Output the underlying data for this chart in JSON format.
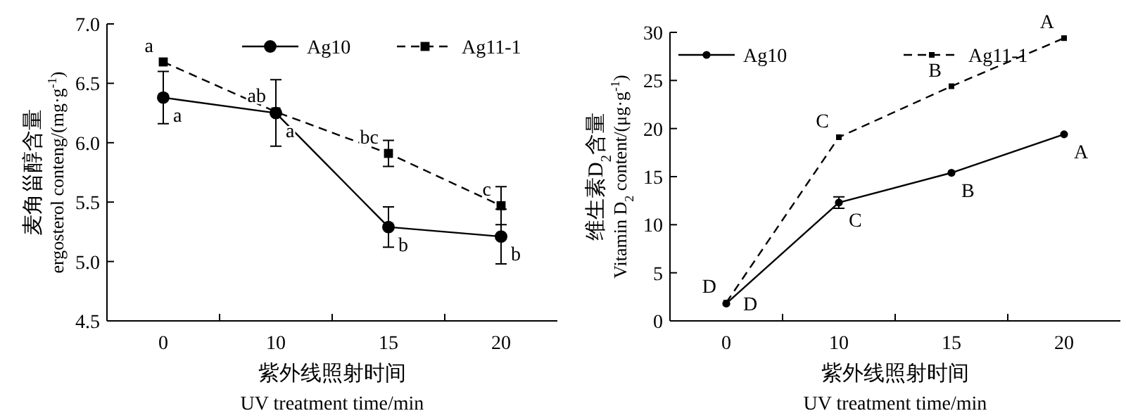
{
  "chart_data": [
    {
      "type": "line",
      "xlabel": "紫外线照射时间\nUV  treatment time/min",
      "ylabel": "麦角甾醇含量\nergosterol conteng/(mg·g$^{-1}$)",
      "categories": [
        "0",
        "10",
        "15",
        "20"
      ],
      "ylim": [
        4.5,
        7.0
      ],
      "yticks": [
        {
          "value": 4.5,
          "label": "4.5"
        },
        {
          "value": 5,
          "label": "5.0"
        },
        {
          "value": 5.5,
          "label": "5.5"
        },
        {
          "value": 6,
          "label": "6.0"
        },
        {
          "value": 6.5,
          "label": "6.5"
        },
        {
          "value": 7,
          "label": "7.0"
        }
      ],
      "legend": "top right",
      "grid": false,
      "series": [
        {
          "name": "Ag10",
          "color": "#000000",
          "marker": "circle",
          "line_style": "solid",
          "values": [
            6.38,
            6.25,
            5.29,
            5.21
          ],
          "errors": [
            0.22,
            0.28,
            0.17,
            0.23
          ]
        },
        {
          "name": "Ag11-1",
          "color": "#000000",
          "marker": "square",
          "line_style": "dashed",
          "values": [
            6.68,
            6.26,
            5.91,
            5.47
          ],
          "errors": [
            null,
            null,
            0.11,
            0.16
          ]
        }
      ],
      "annotations": [
        {
          "text": "a",
          "x": "0",
          "y": 6.68
        },
        {
          "text": "a",
          "x": "0",
          "y": 6.38
        },
        {
          "text": "ab",
          "x": "10",
          "y": 6.26
        },
        {
          "text": "a",
          "x": "10",
          "y": 6.25
        },
        {
          "text": "bc",
          "x": "15",
          "y": 5.91
        },
        {
          "text": "b",
          "x": "15",
          "y": 5.29
        },
        {
          "text": "c",
          "x": "20",
          "y": 5.47
        },
        {
          "text": "b",
          "x": "20",
          "y": 5.21
        }
      ]
    },
    {
      "type": "line",
      "xlabel": "紫外线照射时间\nUV treatment time/min",
      "ylabel": "维生素D$_{2}$含量\nVitamin D$_{2}$ content/(μg·g$^{-1}$)",
      "categories": [
        "0",
        "10",
        "15",
        "20"
      ],
      "ylim": [
        0,
        30
      ],
      "yticks": [
        0,
        5,
        10,
        15,
        20,
        25,
        30
      ],
      "legend": "top left",
      "grid": false,
      "series": [
        {
          "name": "Ag10",
          "color": "#000000",
          "marker": "circle",
          "line_style": "solid",
          "values": [
            1.8,
            12.3,
            15.4,
            19.4
          ],
          "errors": [
            null,
            0.6,
            null,
            null
          ]
        },
        {
          "name": "Ag11-1",
          "color": "#000000",
          "marker": "square",
          "line_style": "dashed",
          "values": [
            1.9,
            19.1,
            24.4,
            29.4
          ]
        }
      ],
      "annotations": [
        {
          "text": "D",
          "x": "0",
          "y": 1.9
        },
        {
          "text": "D",
          "x": "0",
          "y": 1.8
        },
        {
          "text": "C",
          "x": "10",
          "y": 19.1
        },
        {
          "text": "C",
          "x": "10",
          "y": 12.3
        },
        {
          "text": "B",
          "x": "15",
          "y": 24.4
        },
        {
          "text": "B",
          "x": "15",
          "y": 15.4
        },
        {
          "text": "A",
          "x": "20",
          "y": 29.4
        },
        {
          "text": "A",
          "x": "20",
          "y": 19.4
        }
      ]
    }
  ]
}
